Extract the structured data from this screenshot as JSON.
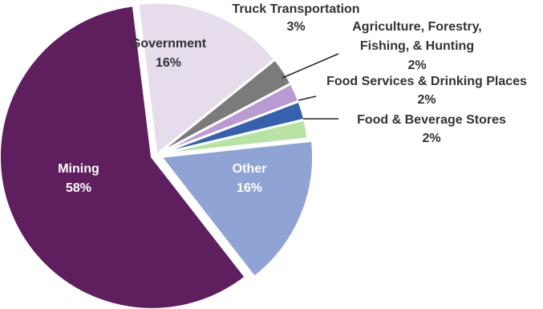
{
  "chart_data": {
    "type": "pie",
    "title": "",
    "slices": [
      {
        "name": "Mining",
        "value": 58,
        "pct_label": "58%",
        "color": "#5f1f5f",
        "label_color": "#ffffff"
      },
      {
        "name": "Government",
        "value": 16,
        "pct_label": "16%",
        "color": "#e7dcec",
        "label_color": "#333333"
      },
      {
        "name": "Truck Transportation",
        "value": 3,
        "pct_label": "3%",
        "color": "#7b7b7b",
        "label_color": "#333333"
      },
      {
        "name": "Agriculture, Forestry, Fishing, & Hunting",
        "value": 2,
        "pct_label": "2%",
        "color": "#b99ad1",
        "label_color": "#333333"
      },
      {
        "name": "Food Services & Drinking Places",
        "value": 2,
        "pct_label": "2%",
        "color": "#3761ac",
        "label_color": "#333333"
      },
      {
        "name": "Food & Beverage Stores",
        "value": 2,
        "pct_label": "2%",
        "color": "#b9e3a5",
        "label_color": "#333333"
      },
      {
        "name": "Other",
        "value": 16,
        "pct_label": "16%",
        "color": "#8fa3d5",
        "label_color": "#ffffff"
      }
    ],
    "legend": "none",
    "label_placement": "inside for large slices, leader lines for small slices"
  }
}
